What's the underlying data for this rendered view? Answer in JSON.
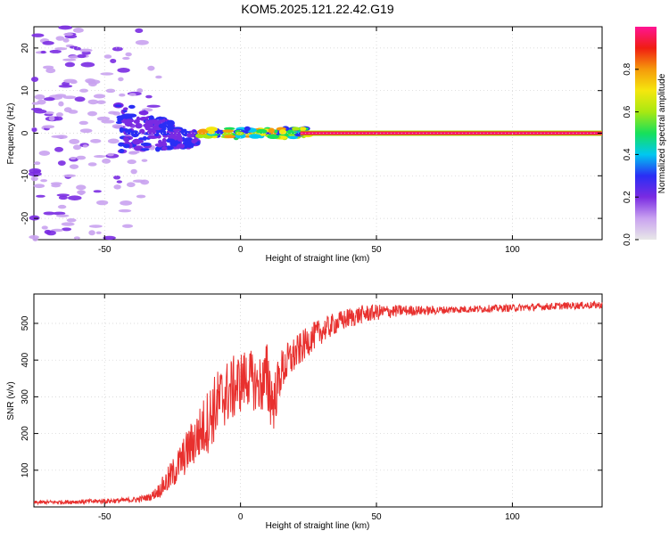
{
  "title": "KOM5.2025.121.22.42.G19",
  "chart_data": [
    {
      "type": "heatmap",
      "title": "",
      "xlabel": "Height of straight line (km)",
      "ylabel": "Frequency (Hz)",
      "xlim": [
        -76,
        133
      ],
      "ylim": [
        -25,
        25
      ],
      "xticks": [
        -50,
        0,
        50,
        100
      ],
      "yticks": [
        -20,
        -10,
        0,
        10,
        20
      ],
      "colorbar": {
        "label": "Normalized spectral amplitude",
        "range": [
          0,
          1
        ],
        "ticks": [
          "0.0",
          "0.2",
          "0.4",
          "0.6",
          "0.8"
        ],
        "colors": [
          "#e8e8e8",
          "#c9a2f0",
          "#7a2be2",
          "#2a2ef5",
          "#00c8f0",
          "#17e05a",
          "#a8e812",
          "#f5e70e",
          "#f59a0b",
          "#f01d12",
          "#ff1493"
        ]
      },
      "features": {
        "noise_region_x": [
          -76,
          -30
        ],
        "scatter_region_x": [
          -45,
          -15
        ],
        "transition_region_x": [
          -15,
          25
        ],
        "dominant_line": {
          "x_from": 22,
          "x_to": 133,
          "frequency": 0,
          "amplitude": 1.0
        }
      },
      "grid": true
    },
    {
      "type": "line",
      "title": "",
      "xlabel": "Height of straight line (km)",
      "ylabel": "SNR (v/v)",
      "xlim": [
        -76,
        133
      ],
      "ylim": [
        0,
        580
      ],
      "xticks": [
        -50,
        0,
        50,
        100
      ],
      "yticks": [
        100,
        200,
        300,
        400,
        500
      ],
      "grid": true,
      "series": [
        {
          "color": "#e8302e",
          "x": [
            -76,
            -60,
            -45,
            -38,
            -33,
            -30,
            -27,
            -24,
            -21,
            -18,
            -15,
            -12,
            -9,
            -6,
            -3,
            0,
            3,
            6,
            9,
            10,
            12,
            15,
            18,
            22,
            26,
            30,
            35,
            40,
            45,
            50,
            60,
            70,
            80,
            90,
            100,
            110,
            120,
            133
          ],
          "values": [
            12,
            14,
            17,
            20,
            28,
            45,
            70,
            100,
            135,
            170,
            200,
            235,
            275,
            305,
            320,
            340,
            355,
            330,
            340,
            350,
            280,
            370,
            400,
            430,
            460,
            480,
            500,
            515,
            525,
            530,
            535,
            535,
            538,
            540,
            542,
            545,
            548,
            550
          ],
          "noise_amplitude": [
            5,
            6,
            7,
            8,
            10,
            20,
            35,
            45,
            55,
            65,
            75,
            90,
            95,
            90,
            90,
            85,
            80,
            75,
            90,
            120,
            80,
            60,
            55,
            45,
            40,
            35,
            30,
            28,
            25,
            22,
            15,
            12,
            10,
            10,
            10,
            10,
            10,
            10
          ]
        }
      ]
    }
  ]
}
